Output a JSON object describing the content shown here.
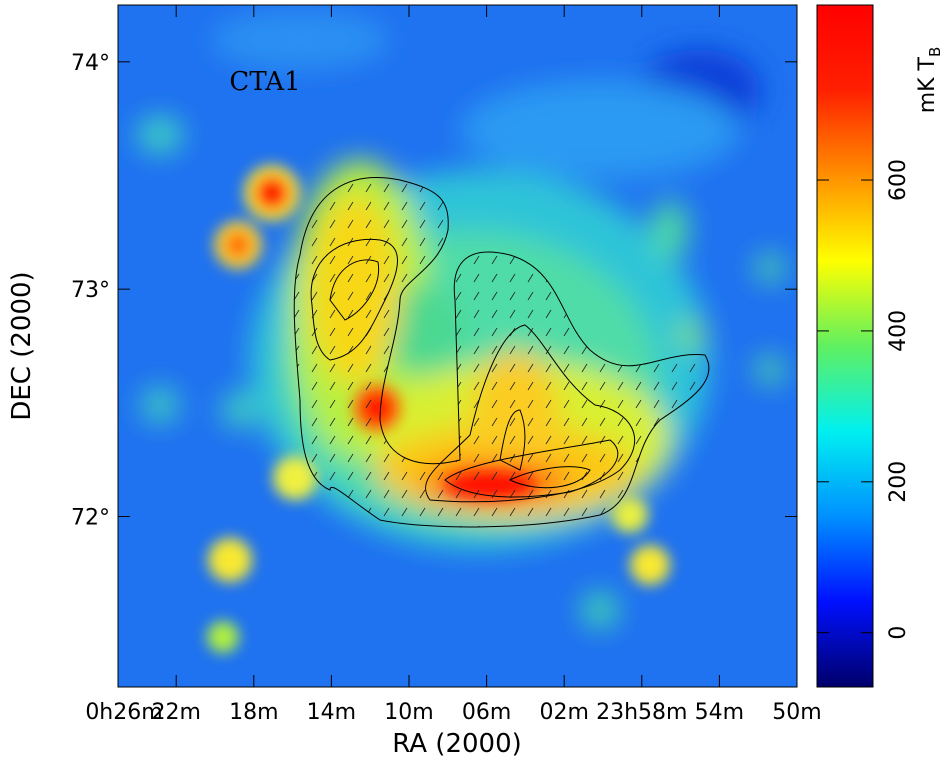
{
  "chart_data": {
    "type": "heatmap",
    "annotation": "CTA1",
    "xlabel": "RA (2000)",
    "ylabel": "DEC (2000)",
    "colorbar_label": {
      "text": "mK T",
      "subscript": "B"
    },
    "xlim": [
      25,
      -10
    ],
    "xticks": [
      {
        "value": 26,
        "label": "0h26m"
      },
      {
        "value": 22,
        "label": "22m"
      },
      {
        "value": 18,
        "label": "18m"
      },
      {
        "value": 14,
        "label": "14m"
      },
      {
        "value": 10,
        "label": "10m"
      },
      {
        "value": 6,
        "label": "06m"
      },
      {
        "value": 2,
        "label": "02m"
      },
      {
        "value": -2,
        "label": "23h58m"
      },
      {
        "value": -6,
        "label": "54m"
      },
      {
        "value": -10,
        "label": "50m"
      }
    ],
    "ylim": [
      71.25,
      74.25
    ],
    "yticks": [
      {
        "value": 72,
        "label": "72°"
      },
      {
        "value": 73,
        "label": "73°"
      },
      {
        "value": 74,
        "label": "74°"
      }
    ],
    "clim": [
      -72,
      832
    ],
    "cticks": [
      0,
      200,
      400,
      600
    ],
    "colormap": [
      "#00006a",
      "#0010ff",
      "#0090ff",
      "#00f0f0",
      "#60f060",
      "#ffff00",
      "#ff9000",
      "#ff2000",
      "#ff0000"
    ],
    "annotation_color": "#f2e01a"
  }
}
